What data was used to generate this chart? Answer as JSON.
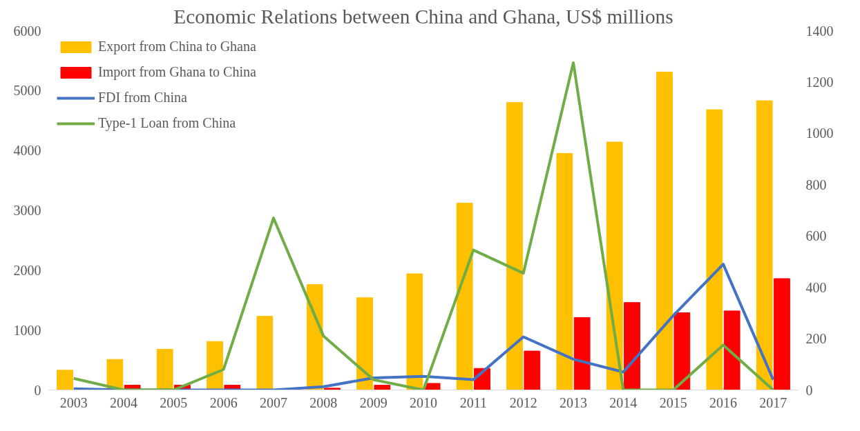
{
  "chart_data": {
    "type": "bar",
    "title": "Economic Relations between China and Ghana, US$ millions",
    "categories": [
      "2003",
      "2004",
      "2005",
      "2006",
      "2007",
      "2008",
      "2009",
      "2010",
      "2011",
      "2012",
      "2013",
      "2014",
      "2015",
      "2016",
      "2017"
    ],
    "series": [
      {
        "name": "Export from China to Ghana",
        "color": "#ffc000",
        "values": [
          330,
          510,
          680,
          810,
          1230,
          1760,
          1540,
          1940,
          3120,
          4800,
          3950,
          4140,
          5310,
          4680,
          4830
        ]
      },
      {
        "name": "Import from Ghana to China",
        "color": "#ff0000",
        "values": [
          null,
          80,
          80,
          80,
          null,
          30,
          80,
          110,
          360,
          650,
          1210,
          1460,
          1290,
          1320,
          1860
        ]
      },
      {
        "name": "FDI from China",
        "type": "line",
        "axis": "y2",
        "color": "#4472c4",
        "values": [
          5,
          0,
          0,
          0,
          0,
          13,
          47,
          53,
          40,
          207,
          120,
          70,
          290,
          490,
          40
        ]
      },
      {
        "name": "Type-1 Loan from China",
        "type": "line",
        "axis": "y2",
        "color": "#70ad47",
        "values": [
          45,
          0,
          0,
          80,
          670,
          210,
          40,
          0,
          545,
          455,
          1275,
          0,
          0,
          175,
          0
        ]
      }
    ],
    "ylim": [
      0,
      6000
    ],
    "yticks": [
      0,
      1000,
      2000,
      3000,
      4000,
      5000,
      6000
    ],
    "y2lim": [
      0,
      1400
    ],
    "y2ticks": [
      0,
      200,
      400,
      600,
      800,
      1000,
      1200,
      1400
    ],
    "grid": false,
    "legend": "top left"
  }
}
